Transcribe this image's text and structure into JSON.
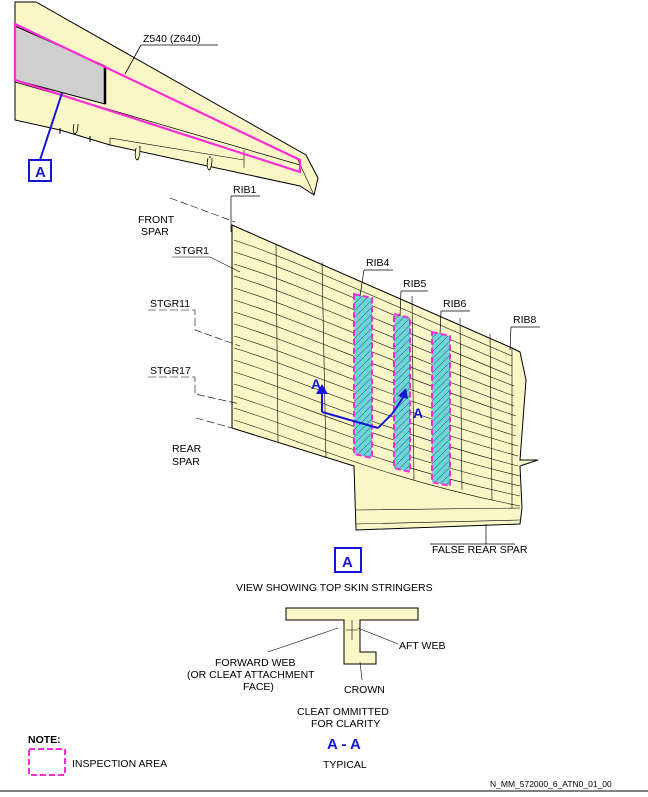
{
  "labels": {
    "zone": "Z540 (Z640)",
    "view_ref_top": "A",
    "front_spar_1": "FRONT",
    "front_spar_2": "SPAR",
    "rib1": "RIB1",
    "stgr1": "STGR1",
    "stgr11": "STGR11",
    "stgr17": "STGR17",
    "rear_spar_1": "REAR",
    "rear_spar_2": "SPAR",
    "rib4": "RIB4",
    "rib5": "RIB5",
    "rib6": "RIB6",
    "rib8": "RIB8",
    "section_mark_left": "A",
    "section_mark_right": "A",
    "false_rear_spar": "FALSE REAR SPAR",
    "view_letter": "A",
    "view_caption": "VIEW SHOWING TOP SKIN STRINGERS",
    "aft_web": "AFT WEB",
    "forward_web_1": "FORWARD WEB",
    "forward_web_2": "(OR CLEAT ATTACHMENT",
    "forward_web_3": "FACE)",
    "crown": "CROWN",
    "cleat_1": "CLEAT OMMITTED",
    "cleat_2": "FOR CLARITY",
    "section_title": "A - A",
    "section_sub": "TYPICAL",
    "note_title": "NOTE:",
    "note_legend": "INSPECTION AREA",
    "ref_code": "N_MM_572000_6_ATN0_01_00"
  },
  "colors": {
    "skin": "#fbf6c6",
    "inspection": "#ff2bd6",
    "callout": "#1515d6",
    "hatch": "#6fd3d8",
    "panel_grey": "#cfcfcf"
  }
}
